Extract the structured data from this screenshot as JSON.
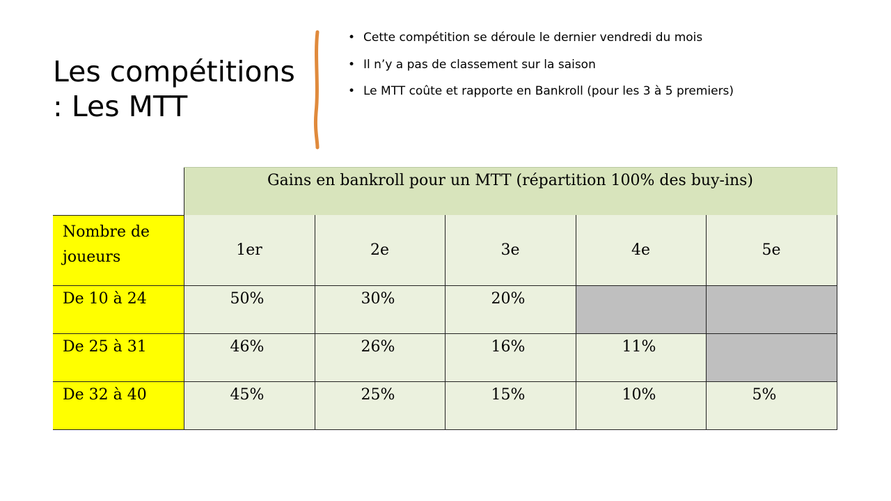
{
  "title": {
    "line1": "Les compétitions",
    "line2": ": Les MTT"
  },
  "accent_color": "#e08a3c",
  "bullets": [
    "Cette compétition se déroule le dernier vendredi du mois",
    "Il n’y a pas de classement sur la saison",
    "Le MTT coûte et rapporte en Bankroll (pour les 3 à 5 premiers)"
  ],
  "table": {
    "caption": "Gains en bankroll pour un MTT (répartition 100% des buy-ins)",
    "row_header": "Nombre de joueurs",
    "positions": [
      "1er",
      "2e",
      "3e",
      "4e",
      "5e"
    ],
    "rows": [
      {
        "label": "De 10 à 24",
        "values": [
          "50%",
          "30%",
          "20%",
          "",
          ""
        ]
      },
      {
        "label": "De 25 à 31",
        "values": [
          "46%",
          "26%",
          "16%",
          "11%",
          ""
        ]
      },
      {
        "label": "De 32 à 40",
        "values": [
          "45%",
          "25%",
          "15%",
          "10%",
          "5%"
        ]
      }
    ]
  }
}
